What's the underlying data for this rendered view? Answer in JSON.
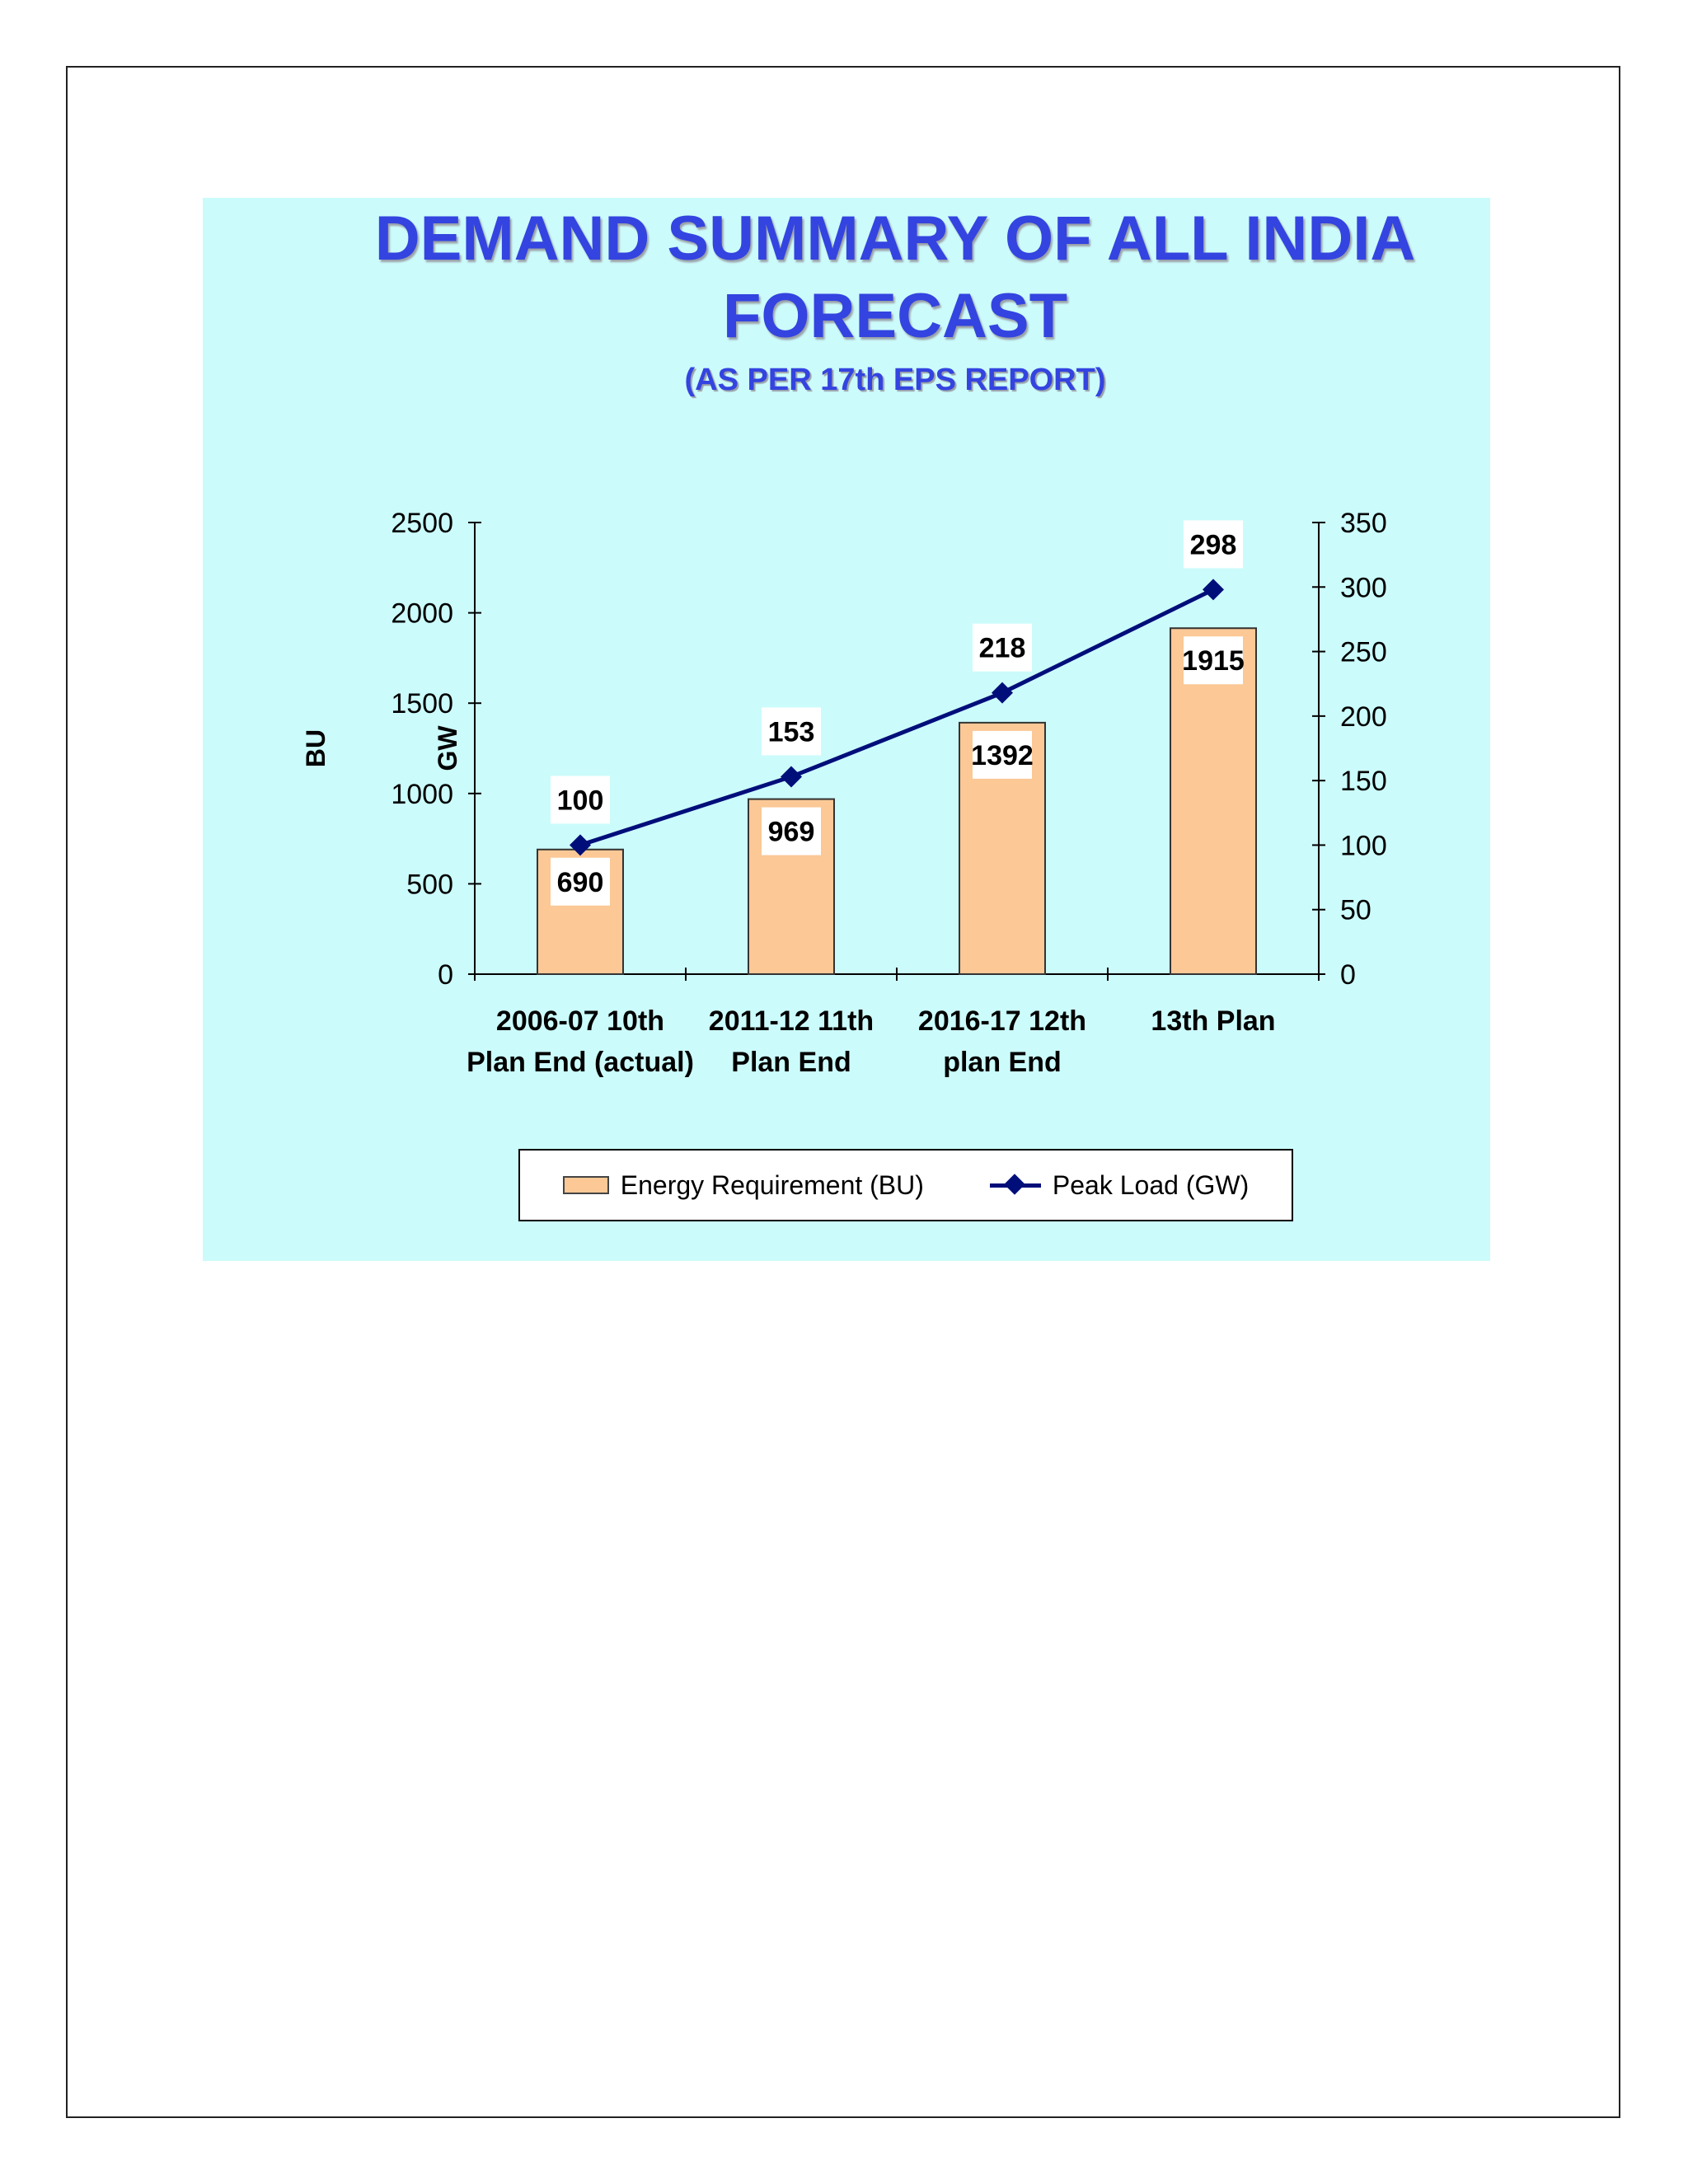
{
  "title_line1": "DEMAND SUMMARY OF ALL INDIA",
  "title_line2": "FORECAST",
  "subtitle": "(AS PER 17th EPS REPORT)",
  "chart_data": {
    "type": "bar",
    "title": "DEMAND SUMMARY OF ALL INDIA FORECAST",
    "subtitle": "(AS PER 17th EPS REPORT)",
    "categories": [
      [
        "2006-07 10th",
        "Plan End (actual)"
      ],
      [
        "2011-12 11th",
        "Plan End"
      ],
      [
        "2016-17 12th",
        "plan End"
      ],
      [
        "13th Plan"
      ]
    ],
    "series": [
      {
        "name": "Energy Requirement (BU)",
        "type": "bar",
        "axis": "left",
        "values": [
          690,
          969,
          1392,
          1915
        ],
        "color": "#fbc896"
      },
      {
        "name": "Peak Load (GW)",
        "type": "line",
        "axis": "right",
        "values": [
          100,
          153,
          218,
          298
        ],
        "color": "#000e7a"
      }
    ],
    "ylabel": "BU",
    "y2label": "GW",
    "ylim": [
      0,
      2500
    ],
    "yticks": [
      0,
      500,
      1000,
      1500,
      2000,
      2500
    ],
    "y2lim": [
      0,
      350
    ],
    "y2ticks": [
      0,
      50,
      100,
      150,
      200,
      250,
      300,
      350
    ],
    "grid": false,
    "legend_position": "bottom",
    "background": "#ccfbfb"
  },
  "legend": {
    "bar_label": "Energy Requirement (BU)",
    "line_label": "Peak Load (GW)"
  }
}
